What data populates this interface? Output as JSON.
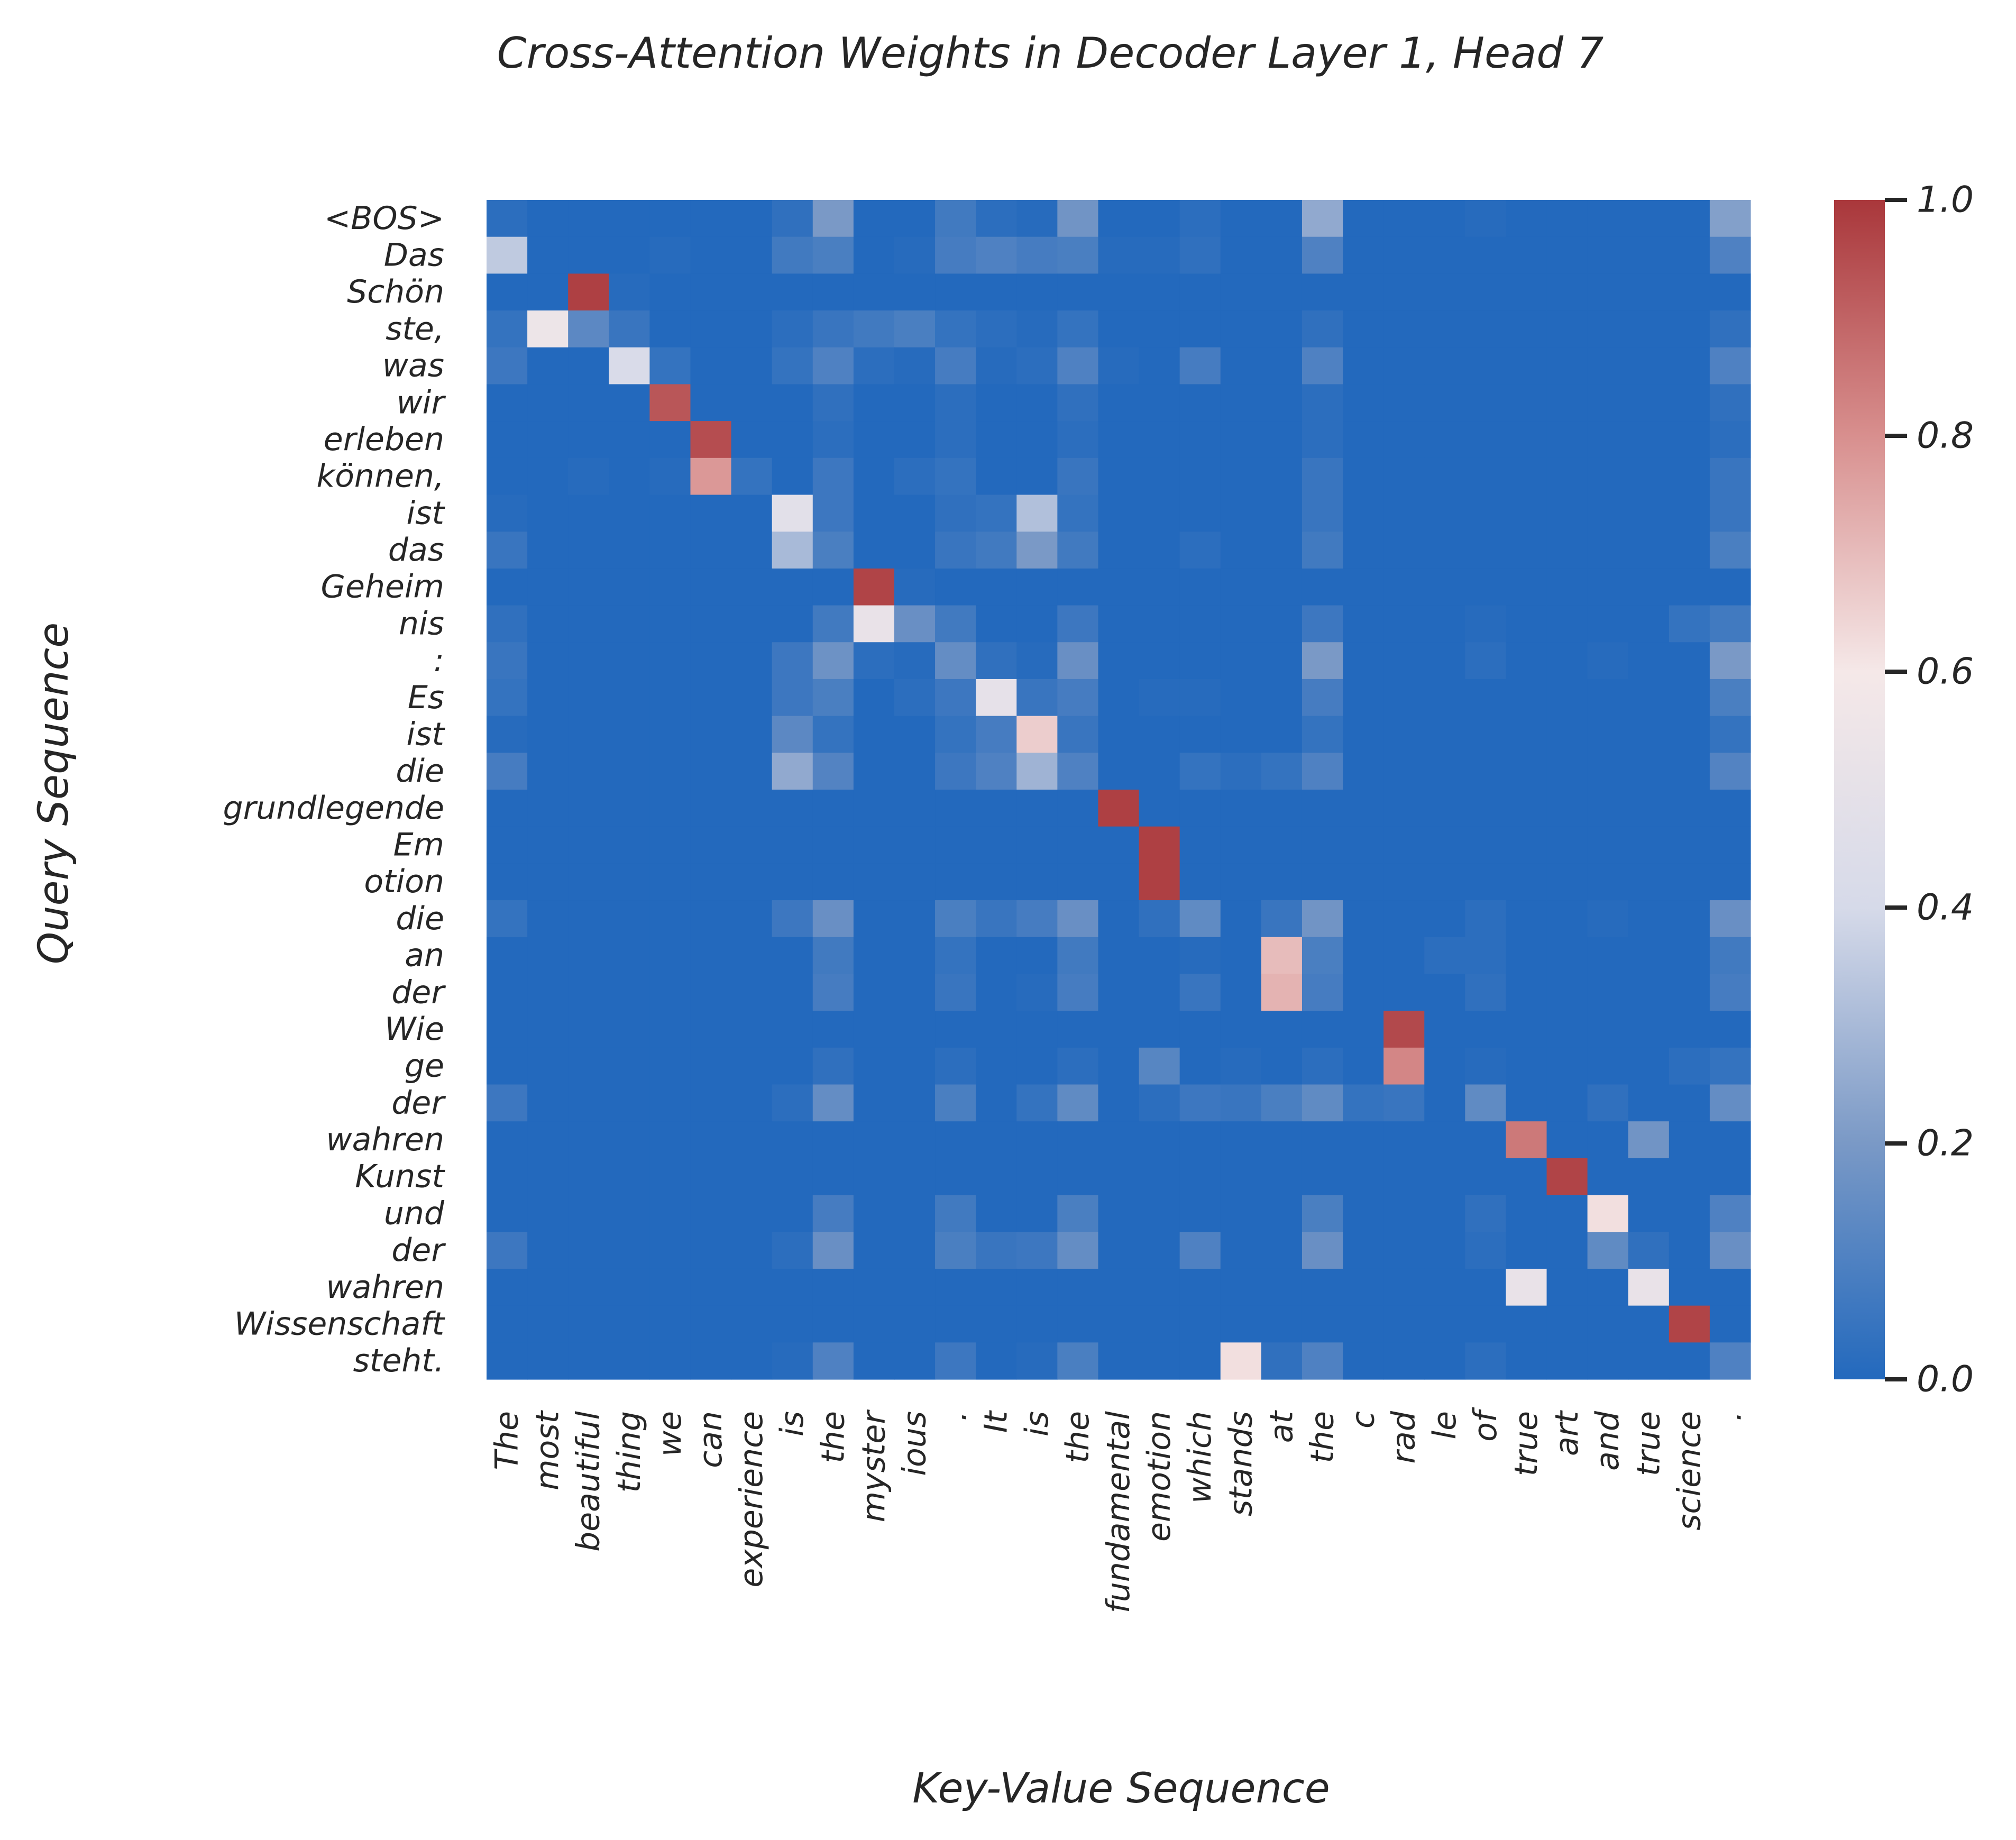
{
  "chart_data": {
    "type": "heatmap",
    "title": "Cross-Attention Weights in Decoder Layer 1, Head 7",
    "xlabel": "Key-Value Sequence",
    "ylabel": "Query Sequence",
    "x_tokens": [
      "The",
      "most",
      "beautiful",
      "thing",
      "we",
      "can",
      "experience",
      "is",
      "the",
      "myster",
      "ious",
      ".",
      "It",
      "is",
      "the",
      "fundamental",
      "emotion",
      "which",
      "stands",
      "at",
      "the",
      "c",
      "rad",
      "le",
      "of",
      "true",
      "art",
      "and",
      "true",
      "science",
      "."
    ],
    "y_tokens": [
      "<BOS>",
      "Das",
      "Schön",
      "ste,",
      "was",
      "wir",
      "erleben",
      "können,",
      "ist",
      "das",
      "Geheim",
      "nis",
      ":",
      "Es",
      "ist",
      "die",
      "grundlegende",
      "Em",
      "otion",
      "die",
      "an",
      "der",
      "Wie",
      "ge",
      "der",
      "wahren",
      "Kunst",
      "und",
      "der",
      "wahren",
      "Wissenschaft",
      "steht."
    ],
    "colorbar": {
      "range": [
        0.0,
        1.0
      ],
      "ticks": [
        "0.0",
        "0.2",
        "0.4",
        "0.6",
        "0.8",
        "1.0"
      ],
      "tick_values": [
        0.0,
        0.2,
        0.4,
        0.6,
        0.8,
        1.0
      ],
      "colormap": "vlag (blue-white-red)",
      "colors": [
        "#2369bd",
        "#7a99c6",
        "#d6dae9",
        "#f5e8e8",
        "#d88f8e",
        "#a9373b"
      ]
    },
    "grid": false,
    "values": [
      [
        0.02,
        0,
        0,
        0,
        0,
        0,
        0,
        0.03,
        0.2,
        0,
        0,
        0.07,
        0.02,
        0.01,
        0.18,
        0,
        0,
        0.02,
        0,
        0,
        0.25,
        0,
        0,
        0,
        0.01,
        0,
        0,
        0,
        0,
        0,
        0.22
      ],
      [
        0.35,
        0,
        0,
        0,
        0.01,
        0,
        0,
        0.07,
        0.09,
        0,
        0.01,
        0.08,
        0.1,
        0.08,
        0.09,
        0.01,
        0.01,
        0.03,
        0,
        0,
        0.1,
        0,
        0,
        0,
        0,
        0,
        0,
        0,
        0,
        0,
        0.1
      ],
      [
        0,
        0,
        0.98,
        0.01,
        0,
        0,
        0,
        0,
        0,
        0,
        0,
        0,
        0,
        0,
        0,
        0,
        0,
        0,
        0,
        0,
        0,
        0,
        0,
        0,
        0,
        0,
        0,
        0,
        0,
        0,
        0
      ],
      [
        0.04,
        0.55,
        0.13,
        0.05,
        0,
        0,
        0,
        0.02,
        0.05,
        0.07,
        0.09,
        0.04,
        0.02,
        0.01,
        0.04,
        0,
        0,
        0,
        0,
        0,
        0.03,
        0,
        0,
        0,
        0,
        0,
        0,
        0,
        0,
        0,
        0.03
      ],
      [
        0.06,
        0,
        0,
        0.42,
        0.04,
        0,
        0,
        0.04,
        0.1,
        0.02,
        0.01,
        0.08,
        0.01,
        0.02,
        0.1,
        0.01,
        0,
        0.08,
        0,
        0,
        0.1,
        0,
        0,
        0,
        0,
        0,
        0,
        0,
        0,
        0,
        0.1
      ],
      [
        0,
        0,
        0,
        0,
        0.93,
        0,
        0,
        0,
        0.03,
        0,
        0,
        0.02,
        0,
        0,
        0.03,
        0,
        0,
        0,
        0,
        0,
        0.02,
        0,
        0,
        0,
        0,
        0,
        0,
        0,
        0,
        0,
        0.03
      ],
      [
        0,
        0,
        0,
        0,
        0,
        0.95,
        0,
        0,
        0.02,
        0,
        0,
        0.02,
        0,
        0,
        0.02,
        0,
        0,
        0,
        0,
        0,
        0.02,
        0,
        0,
        0,
        0,
        0,
        0,
        0,
        0,
        0,
        0.02
      ],
      [
        0,
        0,
        0.01,
        0,
        0.01,
        0.78,
        0.04,
        0,
        0.06,
        0,
        0.02,
        0.04,
        0,
        0,
        0.05,
        0,
        0,
        0,
        0,
        0,
        0.05,
        0,
        0,
        0,
        0,
        0,
        0,
        0,
        0,
        0,
        0.05
      ],
      [
        0.01,
        0,
        0,
        0,
        0,
        0,
        0,
        0.48,
        0.06,
        0,
        0,
        0.03,
        0.04,
        0.32,
        0.04,
        0,
        0,
        0,
        0,
        0,
        0.05,
        0,
        0,
        0,
        0,
        0,
        0,
        0,
        0,
        0,
        0.05
      ],
      [
        0.05,
        0,
        0,
        0,
        0,
        0,
        0,
        0.3,
        0.09,
        0,
        0,
        0.05,
        0.07,
        0.2,
        0.07,
        0,
        0,
        0.02,
        0,
        0,
        0.07,
        0,
        0,
        0,
        0,
        0,
        0,
        0,
        0,
        0,
        0.09
      ],
      [
        0,
        0,
        0,
        0,
        0,
        0,
        0,
        0,
        0,
        0.97,
        0.01,
        0,
        0,
        0,
        0,
        0,
        0,
        0,
        0,
        0,
        0,
        0,
        0,
        0,
        0,
        0,
        0,
        0,
        0,
        0,
        0
      ],
      [
        0.03,
        0,
        0,
        0,
        0,
        0,
        0,
        0,
        0.07,
        0.52,
        0.16,
        0.07,
        0,
        0,
        0.06,
        0,
        0,
        0,
        0,
        0,
        0.06,
        0,
        0,
        0,
        0.01,
        0,
        0,
        0,
        0,
        0.04,
        0.07
      ],
      [
        0.05,
        0,
        0,
        0,
        0,
        0,
        0,
        0.06,
        0.17,
        0.02,
        0.01,
        0.15,
        0.03,
        0.01,
        0.16,
        0,
        0,
        0,
        0,
        0,
        0.2,
        0,
        0,
        0,
        0.02,
        0,
        0,
        0.01,
        0,
        0,
        0.2
      ],
      [
        0.04,
        0,
        0,
        0,
        0,
        0,
        0,
        0.06,
        0.09,
        0,
        0.02,
        0.06,
        0.5,
        0.05,
        0.08,
        0,
        0.01,
        0.01,
        0,
        0,
        0.08,
        0,
        0,
        0,
        0,
        0,
        0,
        0,
        0,
        0,
        0.09
      ],
      [
        0.01,
        0,
        0,
        0,
        0,
        0,
        0,
        0.13,
        0.04,
        0,
        0,
        0.04,
        0.08,
        0.66,
        0.05,
        0,
        0,
        0,
        0,
        0,
        0.04,
        0,
        0,
        0,
        0,
        0,
        0,
        0,
        0,
        0,
        0.04
      ],
      [
        0.08,
        0,
        0,
        0,
        0,
        0,
        0,
        0.25,
        0.11,
        0,
        0,
        0.06,
        0.1,
        0.28,
        0.1,
        0,
        0,
        0.04,
        0.02,
        0.04,
        0.1,
        0,
        0,
        0,
        0,
        0,
        0,
        0,
        0,
        0,
        0.11
      ],
      [
        0,
        0,
        0,
        0,
        0,
        0,
        0,
        0,
        0,
        0,
        0,
        0,
        0,
        0,
        0,
        0.98,
        0,
        0,
        0,
        0,
        0,
        0,
        0,
        0,
        0,
        0,
        0,
        0,
        0,
        0,
        0
      ],
      [
        0,
        0,
        0,
        0,
        0,
        0,
        0,
        0,
        0,
        0,
        0,
        0,
        0,
        0,
        0,
        0,
        0.98,
        0,
        0,
        0,
        0,
        0,
        0,
        0,
        0,
        0,
        0,
        0,
        0,
        0,
        0
      ],
      [
        0,
        0,
        0,
        0,
        0,
        0,
        0,
        0,
        0,
        0,
        0,
        0,
        0,
        0,
        0,
        0,
        0.98,
        0,
        0,
        0,
        0,
        0,
        0,
        0,
        0,
        0,
        0,
        0,
        0,
        0,
        0
      ],
      [
        0.04,
        0,
        0,
        0,
        0,
        0,
        0,
        0.06,
        0.16,
        0,
        0,
        0.09,
        0.05,
        0.08,
        0.16,
        0,
        0.03,
        0.14,
        0,
        0.05,
        0.18,
        0,
        0,
        0,
        0.02,
        0,
        0,
        0.01,
        0,
        0,
        0.16
      ],
      [
        0,
        0,
        0,
        0,
        0,
        0,
        0,
        0,
        0.07,
        0,
        0,
        0.04,
        0,
        0,
        0.07,
        0,
        0,
        0.01,
        0,
        0.7,
        0.09,
        0,
        0,
        0.02,
        0.02,
        0,
        0,
        0,
        0,
        0,
        0.07
      ],
      [
        0,
        0,
        0,
        0,
        0,
        0,
        0,
        0,
        0.08,
        0,
        0,
        0.05,
        0,
        0.01,
        0.08,
        0,
        0,
        0.05,
        0,
        0.72,
        0.08,
        0,
        0,
        0,
        0.03,
        0,
        0,
        0,
        0,
        0,
        0.08
      ],
      [
        0,
        0,
        0,
        0,
        0,
        0,
        0,
        0,
        0,
        0,
        0,
        0,
        0,
        0,
        0,
        0,
        0,
        0,
        0,
        0,
        0,
        0,
        0.96,
        0,
        0,
        0,
        0,
        0,
        0,
        0,
        0
      ],
      [
        0,
        0,
        0,
        0,
        0,
        0,
        0,
        0,
        0.03,
        0,
        0,
        0.02,
        0,
        0,
        0.02,
        0,
        0.12,
        0,
        0.01,
        0,
        0.02,
        0,
        0.82,
        0,
        0.01,
        0,
        0,
        0,
        0,
        0.02,
        0.04
      ],
      [
        0.06,
        0,
        0,
        0,
        0,
        0,
        0,
        0.02,
        0.15,
        0,
        0,
        0.09,
        0,
        0.04,
        0.14,
        0,
        0.02,
        0.06,
        0.05,
        0.09,
        0.14,
        0.04,
        0.05,
        0,
        0.14,
        0,
        0,
        0.03,
        0,
        0,
        0.15
      ],
      [
        0,
        0,
        0,
        0,
        0,
        0,
        0,
        0,
        0,
        0,
        0,
        0,
        0,
        0,
        0,
        0,
        0,
        0,
        0,
        0,
        0,
        0,
        0,
        0,
        0,
        0.85,
        0,
        0,
        0.18,
        0,
        0
      ],
      [
        0,
        0,
        0,
        0,
        0,
        0,
        0,
        0,
        0,
        0,
        0,
        0,
        0,
        0,
        0,
        0,
        0,
        0,
        0,
        0,
        0,
        0,
        0,
        0,
        0,
        0,
        0.97,
        0,
        0,
        0,
        0
      ],
      [
        0,
        0,
        0,
        0,
        0,
        0,
        0,
        0,
        0.08,
        0,
        0,
        0.07,
        0,
        0,
        0.09,
        0,
        0,
        0,
        0,
        0,
        0.09,
        0,
        0,
        0,
        0.03,
        0,
        0,
        0.62,
        0,
        0,
        0.1
      ],
      [
        0.06,
        0,
        0,
        0,
        0,
        0,
        0,
        0.02,
        0.16,
        0,
        0,
        0.09,
        0.05,
        0.06,
        0.15,
        0,
        0,
        0.1,
        0,
        0,
        0.16,
        0,
        0,
        0,
        0.02,
        0,
        0,
        0.14,
        0.03,
        0,
        0.16
      ],
      [
        0,
        0,
        0,
        0,
        0,
        0,
        0,
        0,
        0,
        0,
        0,
        0,
        0,
        0,
        0,
        0,
        0,
        0,
        0,
        0,
        0,
        0,
        0,
        0,
        0,
        0.52,
        0,
        0,
        0.52,
        0,
        0
      ],
      [
        0,
        0,
        0,
        0,
        0,
        0,
        0,
        0,
        0,
        0,
        0,
        0,
        0,
        0,
        0,
        0,
        0,
        0,
        0,
        0,
        0,
        0,
        0,
        0,
        0,
        0,
        0,
        0,
        0,
        0.97,
        0
      ],
      [
        0,
        0,
        0,
        0,
        0,
        0,
        0,
        0.01,
        0.1,
        0,
        0,
        0.06,
        0,
        0.01,
        0.09,
        0,
        0,
        0,
        0.62,
        0.03,
        0.1,
        0,
        0,
        0,
        0.02,
        0,
        0,
        0,
        0,
        0,
        0.1
      ]
    ]
  }
}
